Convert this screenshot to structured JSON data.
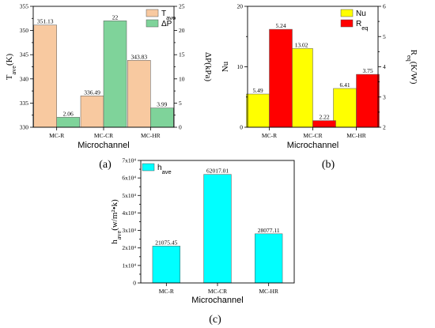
{
  "chart_data": [
    {
      "panel": "(a)",
      "type": "bar",
      "xlabel": "Microchannel",
      "categories": [
        "MC-R",
        "MC-CR",
        "MC-HR"
      ],
      "series": [
        {
          "name": "T",
          "name_sub": "ave",
          "axis": "left",
          "color": "#f8c9a0",
          "values": [
            351.13,
            336.49,
            343.83
          ],
          "labels": [
            "351.13",
            "336.49",
            "343.83"
          ]
        },
        {
          "name": "ΔP",
          "axis": "right",
          "color": "#7fd39a",
          "values": [
            2.06,
            22,
            3.99
          ],
          "labels": [
            "2.06",
            "22",
            "3.99"
          ]
        }
      ],
      "y_left": {
        "label": "T",
        "label_sub": "ave",
        "label_tail": "(K)",
        "lim": [
          330,
          355
        ],
        "ticks": [
          "330",
          "335",
          "340",
          "345",
          "350",
          "355"
        ]
      },
      "y_right": {
        "label": "ΔP(kPa)",
        "lim": [
          0,
          25
        ],
        "ticks": [
          "0",
          "5",
          "10",
          "15",
          "20",
          "25"
        ]
      },
      "legend_position": "top-right"
    },
    {
      "panel": "(b)",
      "type": "bar",
      "xlabel": "Microchannel",
      "categories": [
        "MC-R",
        "MC-CR",
        "MC-HR"
      ],
      "series": [
        {
          "name": "Nu",
          "axis": "left",
          "color": "#ffff00",
          "values": [
            5.49,
            13.02,
            6.41
          ],
          "labels": [
            "5.49",
            "13.02",
            "6.41"
          ]
        },
        {
          "name": "R",
          "name_sub": "eq",
          "axis": "right",
          "color": "#ff0000",
          "values": [
            5.24,
            2.22,
            3.75
          ],
          "labels": [
            "5.24",
            "2.22",
            "3.75"
          ]
        }
      ],
      "y_left": {
        "label": "Nu",
        "lim": [
          0,
          20
        ],
        "ticks": [
          "0",
          "10",
          "20"
        ]
      },
      "y_right": {
        "label": "R",
        "label_sub": "eq",
        "label_tail": "(K/W)",
        "lim": [
          2,
          6
        ],
        "ticks": [
          "2",
          "3",
          "4",
          "5",
          "6"
        ]
      },
      "legend_position": "top-right"
    },
    {
      "panel": "(c)",
      "type": "bar",
      "xlabel": "Microchannel",
      "categories": [
        "MC-R",
        "MC-CR",
        "MC-HR"
      ],
      "series": [
        {
          "name": "h",
          "name_sub": "ave",
          "axis": "left",
          "color": "#00ffff",
          "values": [
            21075.45,
            62017.01,
            28077.11
          ],
          "labels": [
            "21075.45",
            "62017.01",
            "28077.11"
          ]
        }
      ],
      "y_left": {
        "label": "h",
        "label_sub": "ave",
        "label_tail": "(w/m²•k)",
        "lim": [
          0,
          70000
        ],
        "ticks": [
          "0",
          "1x10⁴",
          "2x10⁴",
          "3x10⁴",
          "4x10⁴",
          "5x10⁴",
          "6x10⁴",
          "7x10⁴"
        ]
      },
      "legend_position": "top-left"
    }
  ]
}
